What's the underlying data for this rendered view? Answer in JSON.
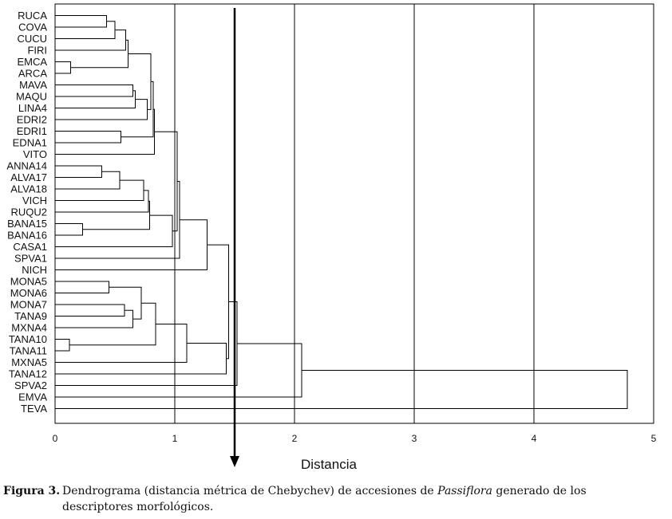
{
  "chart_data": {
    "type": "dendrogram",
    "xlabel": "Distancia",
    "xlim": [
      0,
      5
    ],
    "xticks": [
      "0",
      "1",
      "2",
      "3",
      "4",
      "5"
    ],
    "vertical_gridlines_at": [
      1,
      2,
      3,
      4
    ],
    "cut_arrow_at": 1.5,
    "leaves": [
      "RUCA",
      "COVA",
      "CUCU",
      "FIRI",
      "EMCA",
      "ARCA",
      "MAVA",
      "MAQU",
      "LINA4",
      "EDRI2",
      "EDRI1",
      "EDNA1",
      "VITO",
      "ANNA14",
      "ALVA17",
      "ALVA18",
      "VICH",
      "RUQU2",
      "BANA15",
      "BANA16",
      "CASA1",
      "SPVA1",
      "NICH",
      "MONA5",
      "MONA6",
      "MONA7",
      "TANA9",
      "MXNA4",
      "TANA10",
      "TANA11",
      "MXNA5",
      "TANA12",
      "SPVA2",
      "EMVA",
      "TEVA"
    ],
    "merges": [
      {
        "a": "RUCA",
        "b": "COVA",
        "height": 0.43
      },
      {
        "a": "EMCA",
        "b": "ARCA",
        "height": 0.13
      },
      {
        "a": "MAVA",
        "b": "MAQU",
        "height": 0.65
      },
      {
        "a": "EDRI1",
        "b": "EDNA1",
        "height": 0.55
      },
      {
        "a": "ANNA14",
        "b": "ALVA17",
        "height": 0.39
      },
      {
        "a": "BANA15",
        "b": "BANA16",
        "height": 0.23
      },
      {
        "a": "MONA5",
        "b": "MONA6",
        "height": 0.45
      },
      {
        "a": "MONA7",
        "b": "TANA9",
        "height": 0.58
      },
      {
        "a": "TANA10",
        "b": "TANA11",
        "height": 0.12
      },
      {
        "a": "RUCA-COVA",
        "b": "CUCU",
        "height": 0.5
      },
      {
        "a": "RUCA-CUCU",
        "b": "FIRI",
        "height": 0.59
      },
      {
        "a": "RUCA-FIRI",
        "b": "EMCA-ARCA",
        "height": 0.61
      },
      {
        "a": "MAVA-MAQU",
        "b": "LINA4",
        "height": 0.67
      },
      {
        "a": "MAVA-LINA4",
        "b": "EDRI2",
        "height": 0.77
      },
      {
        "a": "RUCA-ARCA",
        "b": "MAVA-EDRI2",
        "height": 0.8
      },
      {
        "a": "RUCA-EDRI2",
        "b": "EDRI1-EDNA1",
        "height": 0.82
      },
      {
        "a": "RUCA-EDNA1",
        "b": "VITO",
        "height": 0.83
      },
      {
        "a": "ANNA14-ALVA17",
        "b": "ALVA18",
        "height": 0.54
      },
      {
        "a": "ANNA14-ALVA18",
        "b": "VICH",
        "height": 0.74
      },
      {
        "a": "ANNA14-VICH",
        "b": "RUQU2",
        "height": 0.78
      },
      {
        "a": "ANNA14-RUQU2",
        "b": "BANA15-BANA16",
        "height": 0.79
      },
      {
        "a": "ANNA14-BANA16",
        "b": "CASA1",
        "height": 0.98
      },
      {
        "a": "RUCA-VITO",
        "b": "ANNA14-CASA1",
        "height": 1.02
      },
      {
        "a": "RUCA-CASA1",
        "b": "SPVA1",
        "height": 1.04
      },
      {
        "a": "RUCA-SPVA1",
        "b": "NICH",
        "height": 1.27
      },
      {
        "a": "MONA7-TANA9",
        "b": "MXNA4",
        "height": 0.65
      },
      {
        "a": "MONA5-MONA6",
        "b": "MONA7-MXNA4",
        "height": 0.72
      },
      {
        "a": "MONA5-MXNA4",
        "b": "TANA10-TANA11",
        "height": 0.84
      },
      {
        "a": "MONA5-TANA11",
        "b": "MXNA5",
        "height": 1.1
      },
      {
        "a": "MONA5-MXNA5",
        "b": "TANA12",
        "height": 1.43
      },
      {
        "a": "RUCA-NICH",
        "b": "MONA5-TANA12",
        "height": 1.45
      },
      {
        "a": "RUCA-TANA12",
        "b": "SPVA2",
        "height": 1.52
      },
      {
        "a": "RUCA-SPVA2",
        "b": "EMVA",
        "height": 2.06
      },
      {
        "a": "RUCA-EMVA",
        "b": "TEVA",
        "height": 4.78
      }
    ]
  },
  "caption": {
    "figure_label": "Figura 3.",
    "text_before_italic": "Dendrograma (distancia métrica de Chebychev) de accesiones de",
    "italic": "Passiflora",
    "text_after_italic": "generado de los",
    "line2": "descriptores morfológicos."
  }
}
